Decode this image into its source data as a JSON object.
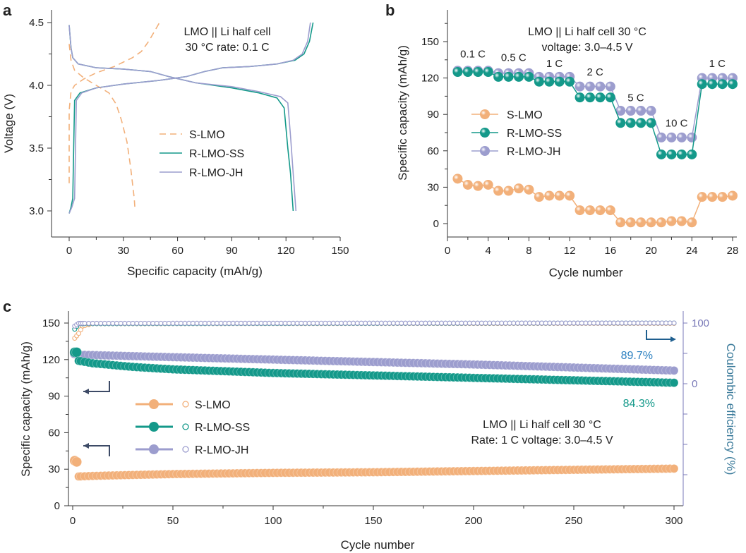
{
  "colors": {
    "s_lmo": "#f2b07a",
    "r_lmo_ss": "#14998a",
    "r_lmo_jh": "#9c9dce",
    "arrow": "#3d4a66",
    "right_axis": "#7a7ab8",
    "pct_jh": "#2a7fc0",
    "pct_ss": "#14998a"
  },
  "chart_data": [
    {
      "panel": "a",
      "type": "line",
      "title": "LMO || Li half cell 30 °C rate: 0.1 C",
      "annotation_lines": [
        "LMO || Li half cell",
        "30 °C rate: 0.1 C"
      ],
      "xlabel": "Specific capacity (mAh/g)",
      "ylabel": "Voltage (V)",
      "xlim": [
        -10,
        150
      ],
      "ylim": [
        2.8,
        4.6
      ],
      "xticks": [
        "0",
        "30",
        "60",
        "90",
        "120",
        "150"
      ],
      "xtick_values": [
        0,
        30,
        60,
        90,
        120,
        150
      ],
      "yticks": [
        "3.0",
        "3.5",
        "4.0",
        "4.5"
      ],
      "ytick_values": [
        3.0,
        3.5,
        4.0,
        4.5
      ],
      "legend": [
        "S-LMO",
        "R-LMO-SS",
        "R-LMO-JH"
      ],
      "legend_position": "center",
      "series": [
        {
          "name": "S-LMO",
          "style": "dashed",
          "charge": [
            [
              0,
              3.22
            ],
            [
              0,
              3.8
            ],
            [
              1,
              3.95
            ],
            [
              3,
              4.0
            ],
            [
              8,
              4.05
            ],
            [
              15,
              4.1
            ],
            [
              25,
              4.15
            ],
            [
              35,
              4.22
            ],
            [
              40,
              4.27
            ],
            [
              44,
              4.35
            ],
            [
              48,
              4.45
            ],
            [
              50,
              4.5
            ]
          ],
          "discharge": [
            [
              0,
              4.33
            ],
            [
              1,
              4.2
            ],
            [
              3,
              4.12
            ],
            [
              8,
              4.06
            ],
            [
              15,
              4.0
            ],
            [
              22,
              3.94
            ],
            [
              26,
              3.85
            ],
            [
              29,
              3.72
            ],
            [
              32,
              3.55
            ],
            [
              34,
              3.35
            ],
            [
              36,
              3.1
            ],
            [
              36.5,
              3.0
            ]
          ]
        },
        {
          "name": "R-LMO-SS",
          "style": "solid",
          "charge": [
            [
              0,
              2.98
            ],
            [
              1,
              3.03
            ],
            [
              2,
              3.1
            ],
            [
              2.5,
              3.5
            ],
            [
              3,
              3.88
            ],
            [
              6,
              3.94
            ],
            [
              15,
              3.98
            ],
            [
              30,
              4.01
            ],
            [
              50,
              4.04
            ],
            [
              65,
              4.07
            ],
            [
              75,
              4.11
            ],
            [
              85,
              4.14
            ],
            [
              100,
              4.15
            ],
            [
              115,
              4.17
            ],
            [
              125,
              4.2
            ],
            [
              130,
              4.25
            ],
            [
              133,
              4.35
            ],
            [
              135,
              4.5
            ]
          ],
          "discharge": [
            [
              0,
              4.48
            ],
            [
              1,
              4.3
            ],
            [
              2,
              4.22
            ],
            [
              5,
              4.17
            ],
            [
              15,
              4.14
            ],
            [
              30,
              4.13
            ],
            [
              45,
              4.11
            ],
            [
              55,
              4.07
            ],
            [
              70,
              4.02
            ],
            [
              90,
              3.98
            ],
            [
              105,
              3.94
            ],
            [
              115,
              3.9
            ],
            [
              119,
              3.82
            ],
            [
              121,
              3.5
            ],
            [
              122.5,
              3.3
            ],
            [
              124,
              3.0
            ]
          ]
        },
        {
          "name": "R-LMO-JH",
          "style": "solid",
          "charge": [
            [
              0,
              2.98
            ],
            [
              1.5,
              3.03
            ],
            [
              3,
              3.1
            ],
            [
              3.5,
              3.5
            ],
            [
              4,
              3.88
            ],
            [
              7,
              3.94
            ],
            [
              15,
              3.98
            ],
            [
              30,
              4.01
            ],
            [
              50,
              4.04
            ],
            [
              65,
              4.07
            ],
            [
              75,
              4.11
            ],
            [
              85,
              4.14
            ],
            [
              100,
              4.15
            ],
            [
              115,
              4.17
            ],
            [
              124,
              4.2
            ],
            [
              129,
              4.25
            ],
            [
              132,
              4.35
            ],
            [
              133.5,
              4.5
            ]
          ],
          "discharge": [
            [
              0,
              4.48
            ],
            [
              1,
              4.3
            ],
            [
              2,
              4.22
            ],
            [
              5,
              4.17
            ],
            [
              15,
              4.14
            ],
            [
              30,
              4.13
            ],
            [
              45,
              4.11
            ],
            [
              55,
              4.07
            ],
            [
              70,
              4.02
            ],
            [
              90,
              3.99
            ],
            [
              105,
              3.95
            ],
            [
              117,
              3.91
            ],
            [
              121,
              3.86
            ],
            [
              122.5,
              3.6
            ],
            [
              124,
              3.3
            ],
            [
              125.5,
              3.0
            ]
          ]
        }
      ]
    },
    {
      "panel": "b",
      "type": "line",
      "annotation_lines": [
        "LMO || Li half cell 30 °C",
        "voltage: 3.0–4.5 V"
      ],
      "xlabel": "Cycle number",
      "ylabel": "Specific capacity (mAh/g)",
      "xlim": [
        0,
        29
      ],
      "ylim": [
        -10,
        175
      ],
      "xticks": [
        "0",
        "4",
        "8",
        "12",
        "16",
        "20",
        "24",
        "28"
      ],
      "xtick_values": [
        0,
        4,
        8,
        12,
        16,
        20,
        24,
        28
      ],
      "yticks": [
        "0",
        "30",
        "60",
        "90",
        "120",
        "150"
      ],
      "ytick_values": [
        0,
        30,
        60,
        90,
        120,
        150
      ],
      "legend": [
        "S-LMO",
        "R-LMO-SS",
        "R-LMO-JH"
      ],
      "legend_position": "center-left",
      "rate_labels": [
        {
          "text": "0.1 C",
          "x": 2.5,
          "y": 137
        },
        {
          "text": "0.5 C",
          "x": 6.5,
          "y": 134
        },
        {
          "text": "1 C",
          "x": 10.5,
          "y": 129
        },
        {
          "text": "2 C",
          "x": 14.5,
          "y": 122
        },
        {
          "text": "5 C",
          "x": 18.5,
          "y": 101
        },
        {
          "text": "10 C",
          "x": 22.5,
          "y": 80
        },
        {
          "text": "1 C",
          "x": 26.5,
          "y": 129
        }
      ],
      "x": [
        1,
        2,
        3,
        4,
        5,
        6,
        7,
        8,
        9,
        10,
        11,
        12,
        13,
        14,
        15,
        16,
        17,
        18,
        19,
        20,
        21,
        22,
        23,
        24,
        25,
        26,
        27,
        28
      ],
      "series": [
        {
          "name": "S-LMO",
          "values": [
            37,
            32,
            31,
            32,
            27,
            27,
            29,
            28,
            22,
            23,
            23,
            23,
            11,
            11,
            11,
            11,
            1,
            1,
            1,
            1,
            1,
            2,
            2,
            1,
            22,
            22,
            22,
            23
          ]
        },
        {
          "name": "R-LMO-SS",
          "values": [
            125,
            125,
            125,
            125,
            121,
            121,
            121,
            121,
            117,
            117,
            117,
            117,
            104,
            104,
            104,
            104,
            83,
            83,
            83,
            83,
            57,
            57,
            57,
            57,
            115,
            115,
            115,
            115
          ]
        },
        {
          "name": "R-LMO-JH",
          "values": [
            126,
            126,
            126,
            126,
            124,
            124,
            124,
            124,
            121,
            121,
            121,
            121,
            113,
            113,
            113,
            113,
            93,
            93,
            93,
            93,
            71,
            71,
            71,
            71,
            120,
            120,
            120,
            120
          ]
        }
      ]
    },
    {
      "panel": "c",
      "type": "scatter",
      "annotation_lines": [
        "LMO || Li half cell 30 °C",
        "Rate: 1 C voltage: 3.0–4.5 V"
      ],
      "xlabel": "Cycle number",
      "ylabel": "Specific capacity (mAh/g)",
      "ylabel_right": "Coulombic efficiency (%)",
      "xlim": [
        -1,
        304
      ],
      "ylim": [
        0,
        160
      ],
      "ylim_right": [
        -200,
        100
      ],
      "xticks": [
        "0",
        "50",
        "100",
        "150",
        "200",
        "250",
        "300"
      ],
      "xtick_values": [
        0,
        50,
        100,
        150,
        200,
        250,
        300
      ],
      "yticks": [
        "0",
        "30",
        "60",
        "90",
        "120",
        "150"
      ],
      "ytick_values": [
        0,
        30,
        60,
        90,
        120,
        150
      ],
      "yticks_right": [
        "0",
        "100"
      ],
      "ytick_right_values": [
        0,
        100
      ],
      "legend": [
        "S-LMO",
        "R-LMO-SS",
        "R-LMO-JH"
      ],
      "legend_position": "center-left",
      "retention_labels": [
        {
          "series": "R-LMO-JH",
          "text": "89.7%"
        },
        {
          "series": "R-LMO-SS",
          "text": "84.3%"
        }
      ],
      "capacity_series": [
        {
          "name": "S-LMO",
          "points": [
            [
              1,
              37
            ],
            [
              2,
              36
            ],
            [
              3,
              24
            ],
            [
              10,
              24.5
            ],
            [
              50,
              26
            ],
            [
              100,
              27
            ],
            [
              150,
              27.5
            ],
            [
              200,
              28.5
            ],
            [
              250,
              29.5
            ],
            [
              300,
              30.5
            ]
          ]
        },
        {
          "name": "R-LMO-SS",
          "points": [
            [
              1,
              126
            ],
            [
              2,
              126
            ],
            [
              3,
              119
            ],
            [
              10,
              117
            ],
            [
              30,
              114
            ],
            [
              50,
              112
            ],
            [
              100,
              109
            ],
            [
              150,
              107
            ],
            [
              200,
              105
            ],
            [
              250,
              103
            ],
            [
              300,
              101
            ]
          ]
        },
        {
          "name": "R-LMO-JH",
          "points": [
            [
              1,
              125
            ],
            [
              2,
              125
            ],
            [
              3,
              124
            ],
            [
              50,
              122
            ],
            [
              100,
              120
            ],
            [
              150,
              118
            ],
            [
              200,
              116
            ],
            [
              250,
              113.5
            ],
            [
              300,
              111
            ]
          ]
        }
      ],
      "efficiency_series": [
        {
          "name": "S-LMO",
          "points": [
            [
              1,
              75
            ],
            [
              3,
              83
            ],
            [
              5,
              95
            ],
            [
              10,
              99
            ],
            [
              300,
              99.5
            ]
          ]
        },
        {
          "name": "R-LMO-SS",
          "points": [
            [
              1,
              90
            ],
            [
              3,
              99
            ],
            [
              300,
              100
            ]
          ]
        },
        {
          "name": "R-LMO-JH",
          "points": [
            [
              1,
              95
            ],
            [
              3,
              99.5
            ],
            [
              300,
              100
            ]
          ]
        }
      ]
    }
  ]
}
